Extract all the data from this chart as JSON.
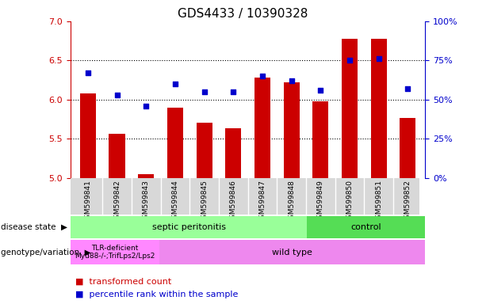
{
  "title": "GDS4433 / 10390328",
  "samples": [
    "GSM599841",
    "GSM599842",
    "GSM599843",
    "GSM599844",
    "GSM599845",
    "GSM599846",
    "GSM599847",
    "GSM599848",
    "GSM599849",
    "GSM599850",
    "GSM599851",
    "GSM599852"
  ],
  "bar_values": [
    6.08,
    5.56,
    5.05,
    5.9,
    5.7,
    5.63,
    6.28,
    6.22,
    5.98,
    6.78,
    6.78,
    5.76
  ],
  "dot_values": [
    67,
    53,
    46,
    60,
    55,
    55,
    65,
    62,
    56,
    75,
    76,
    57
  ],
  "bar_color": "#cc0000",
  "dot_color": "#0000cc",
  "ylim_left": [
    5.0,
    7.0
  ],
  "ylim_right": [
    0,
    100
  ],
  "yticks_left": [
    5.0,
    5.5,
    6.0,
    6.5,
    7.0
  ],
  "yticks_right": [
    0,
    25,
    50,
    75,
    100
  ],
  "ytick_labels_right": [
    "0%",
    "25%",
    "50%",
    "75%",
    "100%"
  ],
  "hlines": [
    5.5,
    6.0,
    6.5
  ],
  "sep_color": "#99ff99",
  "ctrl_color": "#55dd55",
  "tlr_color": "#ff88ff",
  "wt_color": "#ee88ee",
  "sep_label": "septic peritonitis",
  "ctrl_label": "control",
  "tlr_label": "TLR-deficient\nMyd88-/-;TrifLps2/Lps2",
  "wt_label": "wild type",
  "sep_samples": 8,
  "tlr_samples": 3,
  "disease_state_label": "disease state",
  "genotype_label": "genotype/variation",
  "legend_bar": "transformed count",
  "legend_dot": "percentile rank within the sample",
  "bar_bottom": 5.0,
  "xlabel_gray_bg": "#d8d8d8"
}
